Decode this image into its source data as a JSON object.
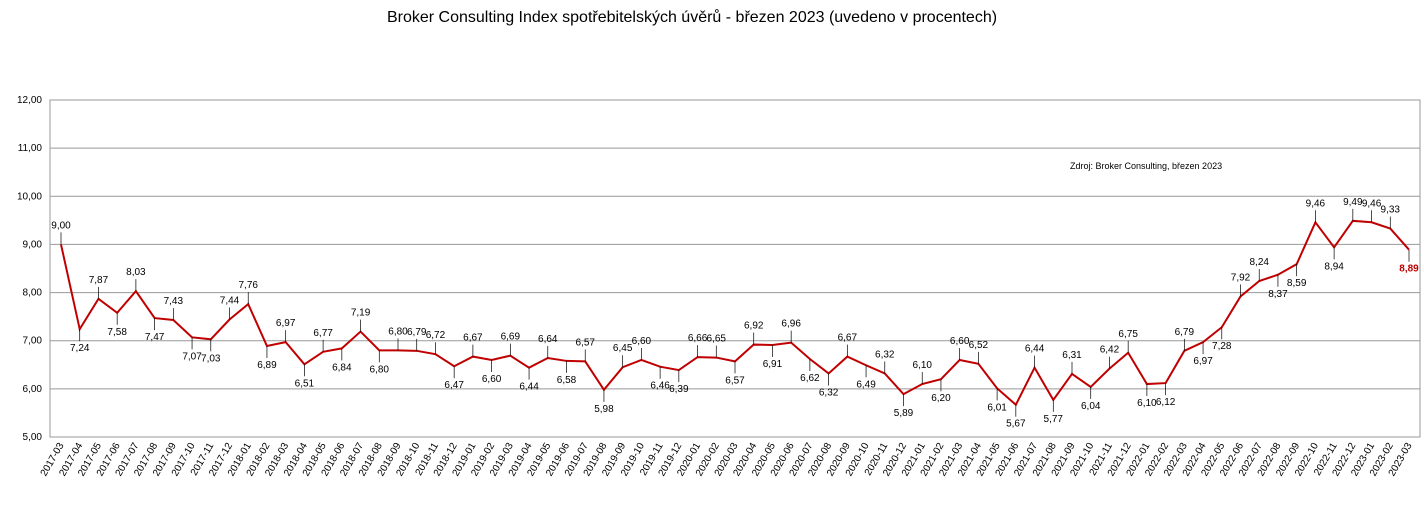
{
  "chart_data": {
    "type": "line",
    "title": "Broker Consulting Index spotřebitelských úvěrů - březen 2023 (uvedeno v procentech)",
    "annotation": "Zdroj: Broker Consulting, březen 2023",
    "categories": [
      "2017-03",
      "2017-04",
      "2017-05",
      "2017-06",
      "2017-07",
      "2017-08",
      "2017-09",
      "2017-10",
      "2017-11",
      "2017-12",
      "2018-01",
      "2018-02",
      "2018-03",
      "2018-04",
      "2018-05",
      "2018-06",
      "2018-07",
      "2018-08",
      "2018-09",
      "2018-10",
      "2018-11",
      "2018-12",
      "2019-01",
      "2019-02",
      "2019-03",
      "2019-04",
      "2019-05",
      "2019-06",
      "2019-07",
      "2019-08",
      "2019-09",
      "2019-10",
      "2019-11",
      "2019-12",
      "2020-01",
      "2020-02",
      "2020-03",
      "2020-04",
      "2020-05",
      "2020-06",
      "2020-07",
      "2020-08",
      "2020-09",
      "2020-10",
      "2020-11",
      "2020-12",
      "2021-01",
      "2021-02",
      "2021-03",
      "2021-04",
      "2021-05",
      "2021-06",
      "2021-07",
      "2021-08",
      "2021-09",
      "2021-10",
      "2021-11",
      "2021-12",
      "2022-01",
      "2022-02",
      "2022-03",
      "2022-04",
      "2022-05",
      "2022-06",
      "2022-07",
      "2022-08",
      "2022-09",
      "2022-10",
      "2022-11",
      "2022-12",
      "2023-01",
      "2023-02",
      "2023-03"
    ],
    "values": [
      9.0,
      7.24,
      7.87,
      7.58,
      8.03,
      7.47,
      7.43,
      7.07,
      7.03,
      7.44,
      7.76,
      6.89,
      6.97,
      6.51,
      6.77,
      6.84,
      7.19,
      6.8,
      6.8,
      6.79,
      6.72,
      6.47,
      6.67,
      6.6,
      6.69,
      6.44,
      6.64,
      6.58,
      6.57,
      5.98,
      6.45,
      6.6,
      6.46,
      6.39,
      6.66,
      6.65,
      6.57,
      6.92,
      6.91,
      6.96,
      6.62,
      6.32,
      6.67,
      6.49,
      6.32,
      5.89,
      6.1,
      6.2,
      6.6,
      6.52,
      6.01,
      5.67,
      6.44,
      5.77,
      6.31,
      6.04,
      6.42,
      6.75,
      6.1,
      6.12,
      6.79,
      6.97,
      7.28,
      7.92,
      8.24,
      8.37,
      8.59,
      9.46,
      8.94,
      9.49,
      9.46,
      9.33,
      8.89
    ],
    "value_labels": [
      "9,00",
      "7,24",
      "7,87",
      "7,58",
      "8,03",
      "7,47",
      "7,43",
      "7,07",
      "7,03",
      "7,44",
      "7,76",
      "6,89",
      "6,97",
      "6,51",
      "6,77",
      "6,84",
      "7,19",
      "6,80",
      "6,80",
      "6,79",
      "6,72",
      "6,47",
      "6,67",
      "6,60",
      "6,69",
      "6,44",
      "6,64",
      "6,58",
      "6,57",
      "5,98",
      "6,45",
      "6,60",
      "6,46",
      "6,39",
      "6,66",
      "6,65",
      "6,57",
      "6,92",
      "6,91",
      "6,96",
      "6,62",
      "6,32",
      "6,67",
      "6,49",
      "6,32",
      "5,89",
      "6,10",
      "6,20",
      "6,60",
      "6,52",
      "6,01",
      "5,67",
      "6,44",
      "5,77",
      "6,31",
      "6,04",
      "6,42",
      "6,75",
      "6,10",
      "6,12",
      "6,79",
      "6,97",
      "7,28",
      "7,92",
      "8,24",
      "8,37",
      "8,59",
      "9,46",
      "8,94",
      "9,49",
      "9,46",
      "9,33",
      "8,89"
    ],
    "color": "#c00000",
    "ylim": [
      5,
      12
    ],
    "yticks": [
      {
        "value": 5,
        "label": "5,00"
      },
      {
        "value": 6,
        "label": "6,00"
      },
      {
        "value": 7,
        "label": "7,00"
      },
      {
        "value": 8,
        "label": "8,00"
      },
      {
        "value": 9,
        "label": "9,00"
      },
      {
        "value": 10,
        "label": "10,00"
      },
      {
        "value": 11,
        "label": "11,00"
      },
      {
        "value": 12,
        "label": "12,00"
      }
    ],
    "grid": true
  }
}
